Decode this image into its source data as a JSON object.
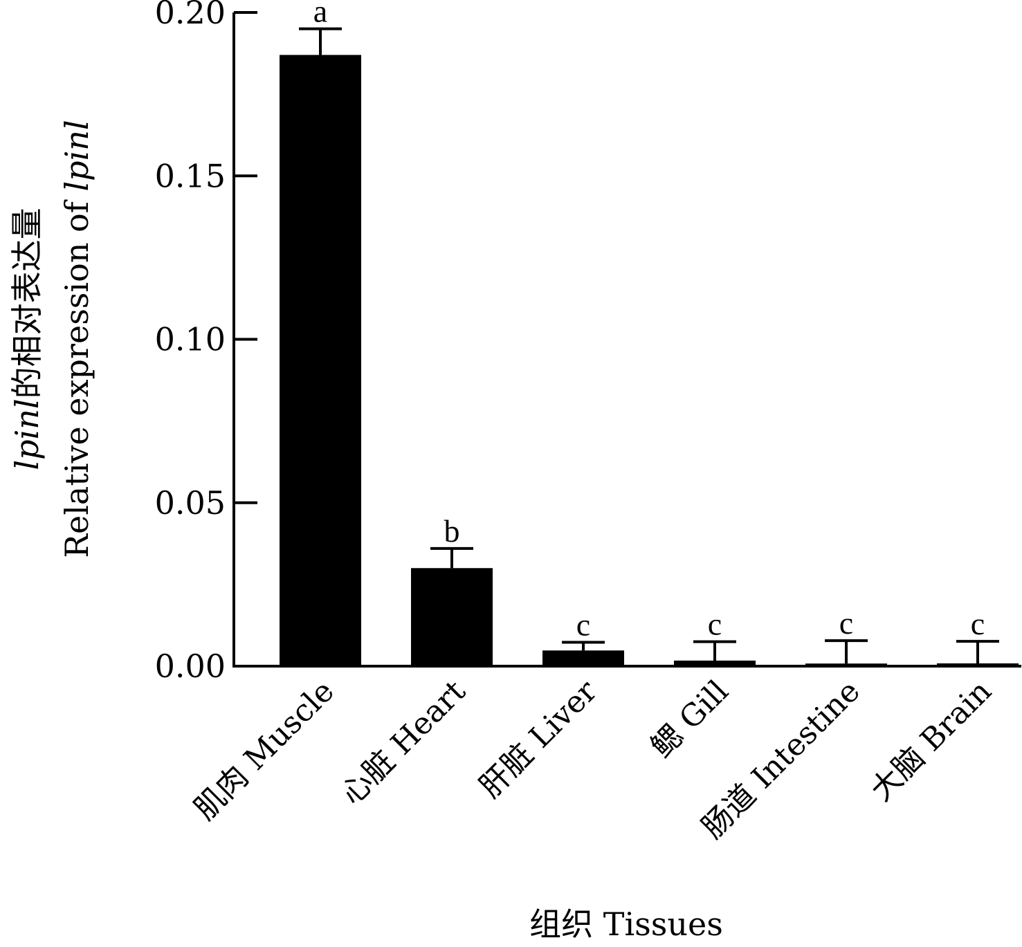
{
  "chart_data": {
    "type": "bar",
    "categories": [
      "肌肉 Muscle",
      "心脏 Heart",
      "肝脏 Liver",
      "鳃 Gill",
      "肠道 Intestine",
      "大脑 Brain"
    ],
    "values": [
      0.187,
      0.03,
      0.0048,
      0.0017,
      0.0008,
      0.0002
    ],
    "errors": [
      0.008,
      0.006,
      0.0025,
      0.0058,
      0.007,
      0.0074
    ],
    "significance": [
      "a",
      "b",
      "c",
      "c",
      "c",
      "c"
    ],
    "bar_color": "#000000",
    "ylim": [
      0,
      0.2
    ],
    "yticks": [
      "0.00",
      "0.05",
      "0.10",
      "0.15",
      "0.20"
    ],
    "ytick_values": [
      0,
      0.05,
      0.1,
      0.15,
      0.2
    ],
    "xlabel": "组织  Tissues",
    "ylabel_line1_italic": "lpinl",
    "ylabel_line1_rest": "的相对表达量",
    "ylabel_line2_prefix": "Relative expression of ",
    "ylabel_line2_italic": "lpinl",
    "grid": false,
    "legend": "none"
  }
}
